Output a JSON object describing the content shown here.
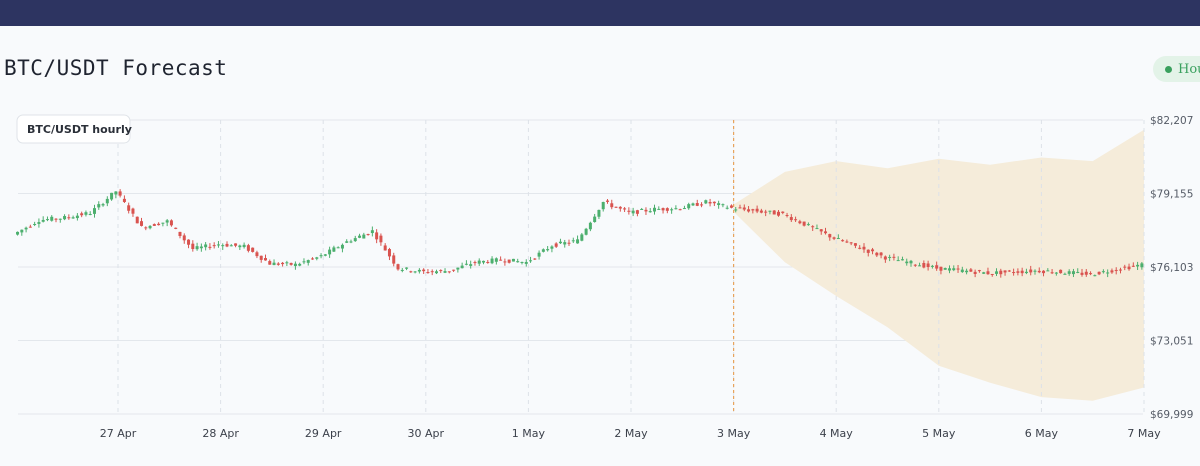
{
  "header": {
    "title": "BTC/USDT Forecast"
  },
  "badge": {
    "label": "Hourly",
    "color": "#3aa05e"
  },
  "colors": {
    "up": "#4caf6e",
    "down": "#d9534f",
    "band": "#f5ecda",
    "forecast_divider": "#e8a45c",
    "grid": "#e3e7ec"
  },
  "chart_data": {
    "type": "candlestick",
    "title": "BTC/USDT Forecast",
    "legend": "BTC/USDT hourly",
    "legend_position": "top-left",
    "x_ticks": [
      "27 Apr",
      "28 Apr",
      "29 Apr",
      "30 Apr",
      "1 May",
      "2 May",
      "3 May",
      "4 May",
      "5 May",
      "6 May",
      "7 May"
    ],
    "y_ticks": [
      "$69,999",
      "$73,051",
      "$76,103",
      "$79,155",
      "$82,207"
    ],
    "ylim": [
      69999,
      82207
    ],
    "grid": true,
    "forecast_start": "3 May",
    "history_price_path": [
      {
        "t": "26 Apr 00:00",
        "price": 77450
      },
      {
        "t": "26 Apr 06:00",
        "price": 78050
      },
      {
        "t": "26 Apr 12:00",
        "price": 78150
      },
      {
        "t": "26 Apr 18:00",
        "price": 78350
      },
      {
        "t": "27 Apr 00:00",
        "price": 79250
      },
      {
        "t": "27 Apr 06:00",
        "price": 77750
      },
      {
        "t": "27 Apr 12:00",
        "price": 78000
      },
      {
        "t": "27 Apr 18:00",
        "price": 76850
      },
      {
        "t": "28 Apr 00:00",
        "price": 77050
      },
      {
        "t": "28 Apr 06:00",
        "price": 76950
      },
      {
        "t": "28 Apr 12:00",
        "price": 76250
      },
      {
        "t": "28 Apr 18:00",
        "price": 76200
      },
      {
        "t": "29 Apr 00:00",
        "price": 76550
      },
      {
        "t": "29 Apr 06:00",
        "price": 77150
      },
      {
        "t": "29 Apr 12:00",
        "price": 77600
      },
      {
        "t": "29 Apr 18:00",
        "price": 76050
      },
      {
        "t": "30 Apr 00:00",
        "price": 75900
      },
      {
        "t": "30 Apr 06:00",
        "price": 75950
      },
      {
        "t": "30 Apr 12:00",
        "price": 76300
      },
      {
        "t": "30 Apr 18:00",
        "price": 76400
      },
      {
        "t": "1 May 00:00",
        "price": 76300
      },
      {
        "t": "1 May 06:00",
        "price": 77000
      },
      {
        "t": "1 May 12:00",
        "price": 77200
      },
      {
        "t": "1 May 18:00",
        "price": 78800
      },
      {
        "t": "2 May 00:00",
        "price": 78350
      },
      {
        "t": "2 May 06:00",
        "price": 78500
      },
      {
        "t": "2 May 12:00",
        "price": 78550
      },
      {
        "t": "2 May 18:00",
        "price": 78800
      },
      {
        "t": "3 May 00:00",
        "price": 78550
      }
    ],
    "forecast_price_path": [
      {
        "t": "3 May 00:00",
        "price": 78550
      },
      {
        "t": "3 May 12:00",
        "price": 78300
      },
      {
        "t": "4 May 00:00",
        "price": 77300
      },
      {
        "t": "4 May 12:00",
        "price": 76500
      },
      {
        "t": "5 May 00:00",
        "price": 76050
      },
      {
        "t": "5 May 12:00",
        "price": 75850
      },
      {
        "t": "6 May 00:00",
        "price": 75950
      },
      {
        "t": "6 May 12:00",
        "price": 75800
      },
      {
        "t": "7 May 00:00",
        "price": 76200
      }
    ],
    "forecast_band": [
      {
        "t": "3 May 00:00",
        "upper": 78700,
        "lower": 78400
      },
      {
        "t": "3 May 12:00",
        "upper": 80050,
        "lower": 76300
      },
      {
        "t": "4 May 00:00",
        "upper": 80500,
        "lower": 74900
      },
      {
        "t": "4 May 12:00",
        "upper": 80200,
        "lower": 73600
      },
      {
        "t": "5 May 00:00",
        "upper": 80600,
        "lower": 72000
      },
      {
        "t": "5 May 12:00",
        "upper": 80350,
        "lower": 71300
      },
      {
        "t": "6 May 00:00",
        "upper": 80650,
        "lower": 70700
      },
      {
        "t": "6 May 12:00",
        "upper": 80500,
        "lower": 70550
      },
      {
        "t": "7 May 00:00",
        "upper": 81800,
        "lower": 71100
      }
    ]
  }
}
